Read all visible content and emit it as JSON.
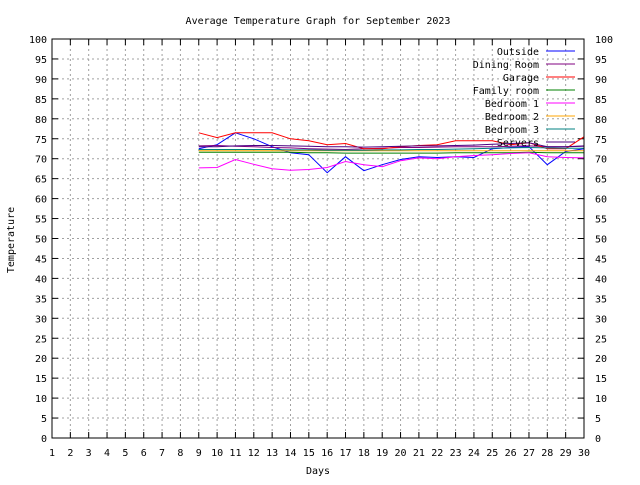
{
  "chart_data": {
    "type": "line",
    "title": "Average Temperature Graph for September 2023",
    "xlabel": "Days",
    "ylabel": "Temperature",
    "xlim": [
      1,
      30
    ],
    "ylim": [
      0,
      100
    ],
    "x_ticks": [
      1,
      2,
      3,
      4,
      5,
      6,
      7,
      8,
      9,
      10,
      11,
      12,
      13,
      14,
      15,
      16,
      17,
      18,
      19,
      20,
      21,
      22,
      23,
      24,
      25,
      26,
      27,
      28,
      29,
      30
    ],
    "y_ticks": [
      0,
      5,
      10,
      15,
      20,
      25,
      30,
      35,
      40,
      45,
      50,
      55,
      60,
      65,
      70,
      75,
      80,
      85,
      90,
      95,
      100
    ],
    "grid": true,
    "legend_position": "top-right",
    "x": [
      9,
      10,
      11,
      12,
      13,
      14,
      15,
      16,
      17,
      18,
      19,
      20,
      21,
      22,
      23,
      24,
      25,
      26,
      27,
      28,
      29,
      30
    ],
    "series": [
      {
        "name": "Outside",
        "color": "#0000ff",
        "values": [
          72.5,
          73.5,
          76.5,
          75.0,
          73.0,
          71.5,
          71.0,
          66.5,
          70.5,
          67.0,
          68.5,
          69.8,
          70.5,
          70.3,
          70.5,
          70.3,
          72.5,
          72.8,
          73.0,
          68.5,
          71.8,
          72.5
        ]
      },
      {
        "name": "Dining Room",
        "color": "#800080",
        "values": [
          73.2,
          73.3,
          73.1,
          73.0,
          72.8,
          72.7,
          72.5,
          72.4,
          72.3,
          72.5,
          72.6,
          72.8,
          72.8,
          72.9,
          73.0,
          73.0,
          73.0,
          73.1,
          73.2,
          73.0,
          73.0,
          73.1
        ]
      },
      {
        "name": "Garage",
        "color": "#ff0000",
        "values": [
          76.5,
          75.3,
          76.5,
          76.5,
          76.5,
          75.0,
          74.5,
          73.5,
          73.8,
          72.5,
          72.5,
          73.0,
          73.3,
          73.5,
          74.5,
          74.5,
          74.5,
          73.5,
          74.0,
          72.5,
          72.5,
          75.5
        ]
      },
      {
        "name": "Family room",
        "color": "#008000",
        "values": [
          71.6,
          71.6,
          71.6,
          71.6,
          71.6,
          71.6,
          71.5,
          71.5,
          71.4,
          71.4,
          71.4,
          71.4,
          71.4,
          71.4,
          71.5,
          71.5,
          71.5,
          71.5,
          71.6,
          71.5,
          71.5,
          71.5
        ]
      },
      {
        "name": "Bedroom 1",
        "color": "#ff00ff",
        "values": [
          67.7,
          67.8,
          69.8,
          68.6,
          67.5,
          67.1,
          67.3,
          67.8,
          69.3,
          68.5,
          68.0,
          69.5,
          70.2,
          70.0,
          70.5,
          70.8,
          71.0,
          71.3,
          71.5,
          70.5,
          70.3,
          70.2
        ]
      },
      {
        "name": "Bedroom 2",
        "color": "#ffa500",
        "values": [
          72.0,
          72.0,
          72.0,
          72.0,
          72.0,
          72.0,
          72.0,
          72.0,
          72.0,
          72.0,
          72.0,
          72.0,
          72.0,
          72.0,
          72.0,
          72.0,
          72.0,
          72.0,
          72.0,
          72.0,
          72.0,
          72.0
        ]
      },
      {
        "name": "Bedroom 3",
        "color": "#008080",
        "values": [
          72.3,
          72.3,
          72.3,
          72.3,
          72.3,
          72.2,
          72.2,
          72.1,
          72.1,
          72.1,
          72.2,
          72.2,
          72.3,
          72.3,
          72.4,
          72.5,
          72.6,
          72.7,
          72.8,
          72.7,
          72.6,
          72.6
        ]
      },
      {
        "name": "Servers",
        "color": "#4b0082",
        "values": [
          73.0,
          73.0,
          73.2,
          73.3,
          73.3,
          73.2,
          73.1,
          73.0,
          73.0,
          72.9,
          73.0,
          73.1,
          73.2,
          73.2,
          73.3,
          73.4,
          73.6,
          73.8,
          74.0,
          73.0,
          73.0,
          73.2
        ]
      }
    ]
  }
}
